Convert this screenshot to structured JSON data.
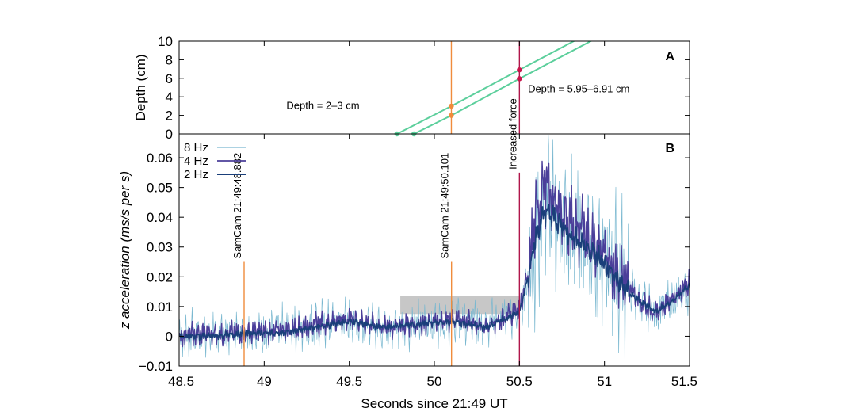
{
  "chart_data": [
    {
      "panel": "A",
      "type": "line",
      "ylabel": "Depth (cm)",
      "ylim": [
        0,
        10
      ],
      "yticks": [
        "0",
        "2",
        "4",
        "6",
        "8",
        "10"
      ],
      "xlim": [
        48.5,
        51.5
      ],
      "grid": false,
      "series": [
        {
          "x": [
            49.78,
            50.1,
            50.5,
            50.85
          ],
          "y": [
            0,
            3,
            6.91,
            10.3
          ],
          "color": "#5ccf9c"
        },
        {
          "x": [
            49.88,
            50.1,
            50.5,
            50.95
          ],
          "y": [
            0,
            2,
            5.95,
            10.3
          ],
          "color": "#5ccf9c"
        }
      ],
      "markers": [
        {
          "x": 49.78,
          "y": 0,
          "color": "#5ccf9c"
        },
        {
          "x": 49.88,
          "y": 0,
          "color": "#5ccf9c"
        },
        {
          "x": 50.1,
          "y": 3,
          "color": "#f08c3c"
        },
        {
          "x": 50.1,
          "y": 2,
          "color": "#f08c3c"
        },
        {
          "x": 50.5,
          "y": 6.91,
          "color": "#c8164b"
        },
        {
          "x": 50.5,
          "y": 5.95,
          "color": "#c8164b"
        }
      ],
      "vlines": [
        {
          "x": 50.1,
          "color": "#f08c3c"
        },
        {
          "x": 50.5,
          "color": "#b0164b"
        }
      ],
      "annotations": [
        {
          "text": "Depth = 2–3 cm",
          "x": 49.56,
          "y": 3.1
        },
        {
          "text": "Depth = 5.95–6.91 cm",
          "x": 50.55,
          "y": 4.9
        }
      ]
    },
    {
      "panel": "B",
      "type": "line",
      "xlabel": "Seconds since 21:49 UT",
      "ylabel": "z acceleration (ms/s per s)",
      "xlim": [
        48.5,
        51.5
      ],
      "ylim": [
        -0.01,
        0.068
      ],
      "xticks": [
        "48.5",
        "49",
        "49.5",
        "50",
        "50.5",
        "51",
        "51.5"
      ],
      "yticks": [
        "−0.01",
        "0",
        "0.01",
        "0.02",
        "0.03",
        "0.04",
        "0.05",
        "0.06"
      ],
      "grid": false,
      "legend_position": "top-left",
      "series": [
        {
          "name": "8 Hz",
          "color": "#7ab8d0",
          "width": 0.7,
          "amplitude": 0.9,
          "x": [
            48.5,
            48.7,
            48.9,
            49.1,
            49.3,
            49.5,
            49.7,
            49.9,
            50.1,
            50.3,
            50.5,
            50.6,
            50.65,
            50.7,
            50.8,
            50.9,
            51.0,
            51.1,
            51.2,
            51.3,
            51.4,
            51.5
          ],
          "y": [
            0.0,
            0.001,
            0.001,
            0.002,
            0.004,
            0.005,
            0.003,
            0.004,
            0.005,
            0.005,
            0.008,
            0.03,
            0.048,
            0.04,
            0.035,
            0.032,
            0.025,
            0.02,
            0.012,
            0.008,
            0.012,
            0.015
          ]
        },
        {
          "name": "4 Hz",
          "color": "#4b3f9a",
          "width": 1.4,
          "amplitude": 0.45,
          "x": [
            48.5,
            48.7,
            48.9,
            49.1,
            49.3,
            49.5,
            49.7,
            49.9,
            50.1,
            50.3,
            50.5,
            50.55,
            50.6,
            50.65,
            50.7,
            50.8,
            50.9,
            51.0,
            51.1,
            51.2,
            51.3,
            51.4,
            51.5
          ],
          "y": [
            0.0,
            0.001,
            0.001,
            0.002,
            0.004,
            0.006,
            0.003,
            0.004,
            0.006,
            0.003,
            0.009,
            0.02,
            0.042,
            0.052,
            0.045,
            0.038,
            0.033,
            0.028,
            0.02,
            0.012,
            0.008,
            0.013,
            0.018
          ]
        },
        {
          "name": "2 Hz",
          "color": "#1a3f7a",
          "width": 1.6,
          "amplitude": 0.15,
          "x": [
            48.5,
            48.7,
            48.9,
            49.1,
            49.3,
            49.5,
            49.7,
            49.9,
            50.1,
            50.3,
            50.5,
            50.55,
            50.6,
            50.65,
            50.7,
            50.8,
            50.9,
            51.0,
            51.1,
            51.2,
            51.3,
            51.4,
            51.5
          ],
          "y": [
            0.0,
            0.0,
            0.001,
            0.001,
            0.003,
            0.005,
            0.003,
            0.004,
            0.005,
            0.003,
            0.008,
            0.02,
            0.034,
            0.042,
            0.04,
            0.034,
            0.03,
            0.024,
            0.017,
            0.012,
            0.008,
            0.012,
            0.017
          ]
        }
      ],
      "vlines": [
        {
          "x": 48.882,
          "y0": -0.01,
          "y1": 0.025,
          "color": "#f08c3c",
          "label": "SamCam 21:49:48.882"
        },
        {
          "x": 50.101,
          "y0": -0.01,
          "y1": 0.025,
          "color": "#f08c3c",
          "label": "SamCam 21:49:50.101"
        },
        {
          "x": 50.5,
          "y0": -0.01,
          "y1": 0.055,
          "color": "#b0164b",
          "label": "Increased force"
        }
      ],
      "shaded_band": {
        "x0": 49.8,
        "x1": 50.5,
        "y0": 0.0075,
        "y1": 0.0135,
        "color": "#bdbdbd"
      }
    }
  ],
  "panel_labels": {
    "a": "A",
    "b": "B"
  }
}
